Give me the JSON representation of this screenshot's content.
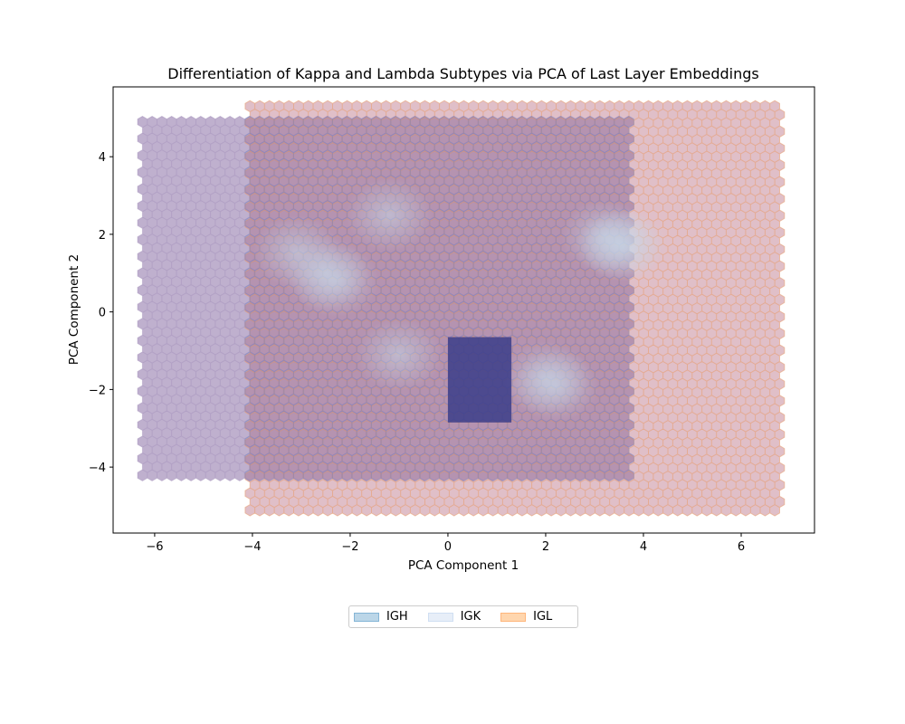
{
  "chart_data": {
    "type": "hexbin",
    "title": "Differentiation of Kappa and Lambda Subtypes via PCA of Last Layer Embeddings",
    "xlabel": "PCA Component 1",
    "ylabel": "PCA Component 2",
    "xlim": [
      -6.85,
      7.5
    ],
    "ylim": [
      -5.7,
      5.8
    ],
    "xticks": [
      -6,
      -4,
      -2,
      0,
      2,
      4,
      6
    ],
    "yticks": [
      -4,
      -2,
      0,
      2,
      4
    ],
    "xtick_labels": [
      "−6",
      "−4",
      "−2",
      "0",
      "2",
      "4",
      "6"
    ],
    "ytick_labels": [
      "−4",
      "−2",
      "0",
      "2",
      "4"
    ],
    "grid": false,
    "legend_position": "below plot, centered",
    "series": [
      {
        "name": "IGH",
        "color": "#1f77b4",
        "extent_x": [
          -6.25,
          3.7
        ],
        "extent_y": [
          -4.4,
          4.9
        ],
        "clusters": [
          [
            -2.5,
            1.0
          ],
          [
            2.2,
            -1.9
          ],
          [
            -1.0,
            -1.1
          ],
          [
            -1.2,
            2.5
          ]
        ]
      },
      {
        "name": "IGK",
        "color": "#aec7e8",
        "extent_x": [
          -4.05,
          3.7
        ],
        "extent_y": [
          -4.4,
          4.9
        ],
        "clusters": [
          [
            3.6,
            1.7
          ],
          [
            -2.3,
            0.8
          ],
          [
            2.0,
            -1.7
          ]
        ]
      },
      {
        "name": "IGL",
        "color": "#ffbb78",
        "extent_x": [
          -4.05,
          6.85
        ],
        "extent_y": [
          -5.2,
          5.3
        ],
        "clusters": [
          [
            3.2,
            1.95
          ],
          [
            -3.1,
            1.55
          ],
          [
            3.5,
            1.75
          ]
        ]
      }
    ],
    "highlight_region": {
      "x": [
        0,
        1.3
      ],
      "y": [
        -2.85,
        -0.65
      ]
    }
  }
}
